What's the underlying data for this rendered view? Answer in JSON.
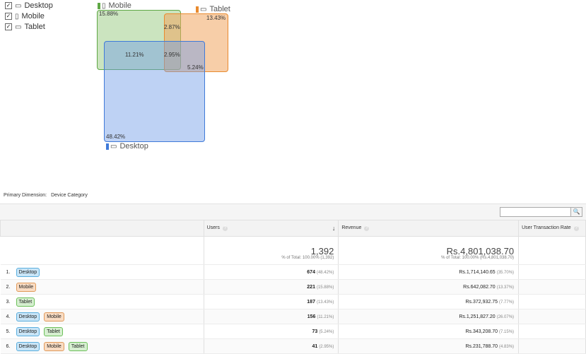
{
  "legend": {
    "items": [
      {
        "label": "Desktop",
        "checked": true,
        "icon": "desktop-icon"
      },
      {
        "label": "Mobile",
        "checked": true,
        "icon": "mobile-icon"
      },
      {
        "label": "Tablet",
        "checked": true,
        "icon": "tablet-icon"
      }
    ]
  },
  "venn": {
    "mobile_label": "Mobile",
    "tablet_label": "Tablet",
    "desktop_label": "Desktop",
    "mobile_pct": "15.88%",
    "tablet_pct": "13.43%",
    "desktop_pct": "48.42%",
    "mobile_tablet_pct": "2.87%",
    "desktop_mobile_pct": "11.21%",
    "all_three_pct": "2.95%",
    "desktop_tablet_pct": "5.24%",
    "colors": {
      "mobile": "#5fa845",
      "tablet": "#e98a2e",
      "desktop": "#3f7ad9"
    }
  },
  "dimension": {
    "label": "Primary Dimension:",
    "value": "Device Category"
  },
  "table": {
    "headers": {
      "users": "Users",
      "revenue": "Revenue",
      "utr": "User Transaction Rate"
    },
    "totals": {
      "users": "1,392",
      "users_sub": "% of Total: 100.00% (1,392)",
      "revenue": "Rs.4,801,038.70",
      "revenue_sub": "% of Total: 100.00% (Rs.4,801,038.70)"
    },
    "rows": [
      {
        "index": "1.",
        "segments": [
          "Desktop"
        ],
        "users": "674",
        "users_pct": "(48.42%)",
        "revenue": "Rs.1,714,140.65",
        "revenue_pct": "(35.70%)"
      },
      {
        "index": "2.",
        "segments": [
          "Mobile"
        ],
        "users": "221",
        "users_pct": "(15.88%)",
        "revenue": "Rs.642,082.70",
        "revenue_pct": "(13.37%)"
      },
      {
        "index": "3.",
        "segments": [
          "Tablet"
        ],
        "users": "187",
        "users_pct": "(13.43%)",
        "revenue": "Rs.372,932.75",
        "revenue_pct": "(7.77%)"
      },
      {
        "index": "4.",
        "segments": [
          "Desktop",
          "Mobile"
        ],
        "users": "156",
        "users_pct": "(11.21%)",
        "revenue": "Rs.1,251,827.20",
        "revenue_pct": "(26.07%)"
      },
      {
        "index": "5.",
        "segments": [
          "Desktop",
          "Tablet"
        ],
        "users": "73",
        "users_pct": "(5.24%)",
        "revenue": "Rs.343,208.70",
        "revenue_pct": "(7.15%)"
      },
      {
        "index": "6.",
        "segments": [
          "Desktop",
          "Mobile",
          "Tablet"
        ],
        "users": "41",
        "users_pct": "(2.95%)",
        "revenue": "Rs.231,788.70",
        "revenue_pct": "(4.83%)"
      }
    ]
  }
}
